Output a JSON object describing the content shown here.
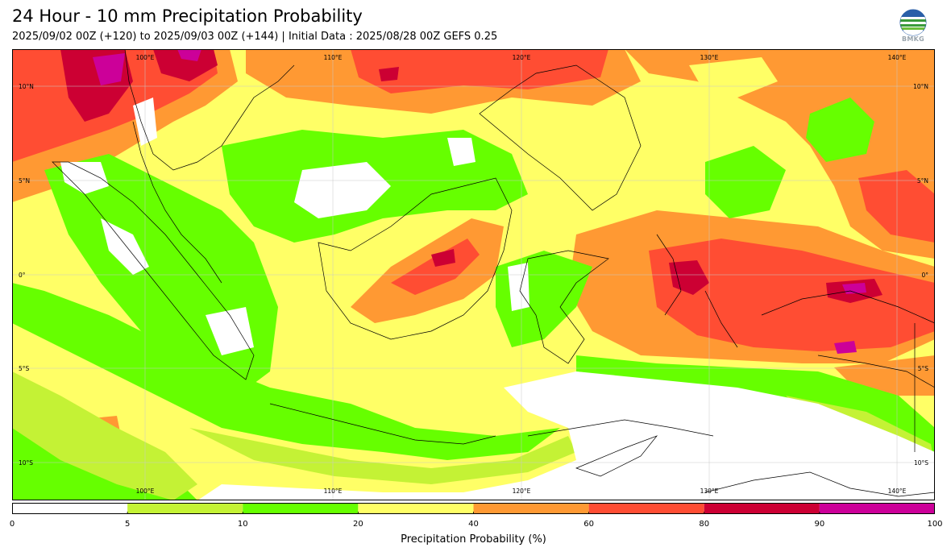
{
  "title": "24 Hour - 10 mm Precipitation Probability",
  "subtitle": "2025/09/02 00Z (+120) to 2025/09/03 00Z (+144) | Initial Data : 2025/08/28 00Z GEFS 0.25",
  "logo_text": "BMKG",
  "map": {
    "lon_top_labels": [
      "100°E",
      "110°E",
      "120°E",
      "130°E",
      "140°E"
    ],
    "lon_bottom_labels": [
      "100°E",
      "110°E",
      "120°E",
      "130°E",
      "140°E"
    ],
    "lat_left_labels": [
      "10°N",
      "5°N",
      "0°",
      "5°S",
      "10°S"
    ],
    "lat_right_labels": [
      "10°N",
      "5°N",
      "0°",
      "5°S",
      "10°S"
    ]
  },
  "colorbar": {
    "title": "Precipitation Probability (%)",
    "bounds": [
      0,
      5,
      10,
      20,
      40,
      60,
      80,
      90,
      100
    ],
    "tick_labels": [
      "0",
      "5",
      "10",
      "20",
      "40",
      "60",
      "80",
      "90",
      "100"
    ],
    "colors": [
      "#ffffff",
      "#c4f235",
      "#66ff00",
      "#ffff66",
      "#ff9933",
      "#ff4d33",
      "#cc0033",
      "#cc0099"
    ]
  }
}
